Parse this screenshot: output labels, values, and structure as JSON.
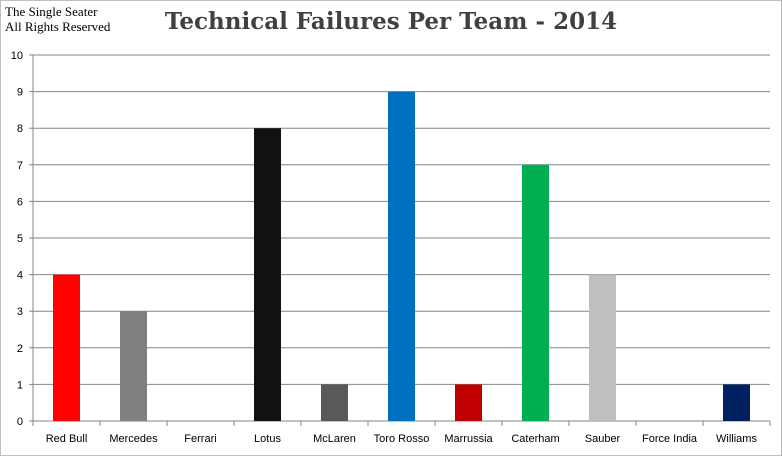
{
  "watermark": {
    "line1": "The Single Seater",
    "line2": "All Rights Reserved"
  },
  "chart_data": {
    "type": "bar",
    "title": "Technical Failures Per Team - 2014",
    "xlabel": "",
    "ylabel": "",
    "ylim": [
      0,
      10
    ],
    "yticks": [
      0,
      1,
      2,
      3,
      4,
      5,
      6,
      7,
      8,
      9,
      10
    ],
    "grid": true,
    "legend": "none",
    "categories": [
      "Red Bull",
      "Mercedes",
      "Ferrari",
      "Lotus",
      "McLaren",
      "Toro Rosso",
      "Marrussia",
      "Caterham",
      "Sauber",
      "Force India",
      "Williams"
    ],
    "values": [
      4,
      3,
      0,
      8,
      1,
      9,
      1,
      7,
      4,
      0,
      1
    ],
    "colors": [
      "#ff0000",
      "#808080",
      "#ffffff",
      "#111111",
      "#595959",
      "#0070c0",
      "#c00000",
      "#00b050",
      "#bfbfbf",
      "#ffffff",
      "#002060"
    ]
  }
}
